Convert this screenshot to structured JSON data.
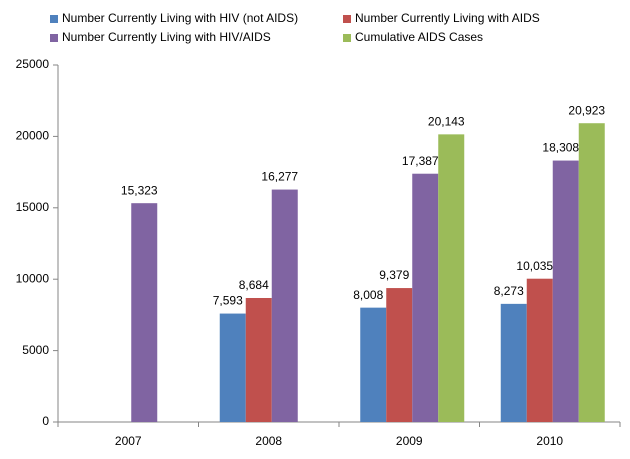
{
  "chart_data": {
    "type": "bar",
    "categories": [
      "2007",
      "2008",
      "2009",
      "2010"
    ],
    "series": [
      {
        "name": "Number Currently Living with HIV (not AIDS)",
        "color": "#4f81bd",
        "values": [
          null,
          7593,
          8008,
          8273
        ],
        "value_labels": [
          null,
          "7,593",
          "8,008",
          "8,273"
        ]
      },
      {
        "name": "Number Currently Living with AIDS",
        "color": "#c0504d",
        "values": [
          null,
          8684,
          9379,
          10035
        ],
        "value_labels": [
          null,
          "8,684",
          "9,379",
          "10,035"
        ]
      },
      {
        "name": "Number Currently Living with HIV/AIDS",
        "color": "#8064a2",
        "values": [
          15323,
          16277,
          17387,
          18308
        ],
        "value_labels": [
          "15,323",
          "16,277",
          "17,387",
          "18,308"
        ]
      },
      {
        "name": "Cumulative AIDS Cases",
        "color": "#9bbb59",
        "values": [
          null,
          null,
          20143,
          20923
        ],
        "value_labels": [
          null,
          null,
          "20,143",
          "20,923"
        ]
      }
    ],
    "ylim": [
      0,
      25000
    ],
    "yticks": [
      0,
      5000,
      10000,
      15000,
      20000,
      25000
    ],
    "grid": false
  }
}
